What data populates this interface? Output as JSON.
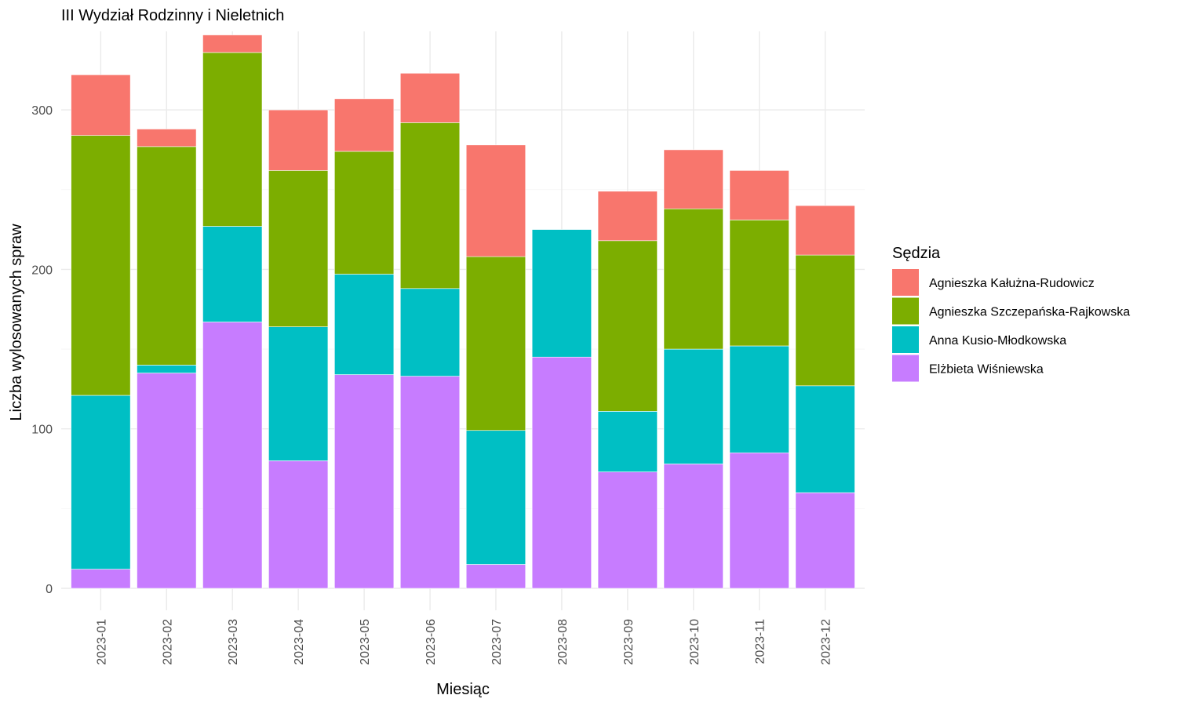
{
  "chart_data": {
    "type": "bar",
    "stacked": true,
    "title": "III Wydział Rodzinny i Nieletnich",
    "xlabel": "Miesiąc",
    "ylabel": "Liczba wylosowanych spraw",
    "ylim": [
      0,
      350
    ],
    "yticks": [
      0,
      100,
      200,
      300
    ],
    "grid": true,
    "legend_title": "Sędzia",
    "legend_position": "right",
    "categories": [
      "2023-01",
      "2023-02",
      "2023-03",
      "2023-04",
      "2023-05",
      "2023-06",
      "2023-07",
      "2023-08",
      "2023-09",
      "2023-10",
      "2023-11",
      "2023-12"
    ],
    "series": [
      {
        "name": "Elżbieta Wiśniewska",
        "color": "#C77CFF",
        "values": [
          12,
          135,
          167,
          80,
          134,
          133,
          15,
          145,
          73,
          78,
          85,
          60
        ]
      },
      {
        "name": "Anna Kusio-Młodkowska",
        "color": "#00BFC4",
        "values": [
          109,
          5,
          60,
          84,
          63,
          55,
          84,
          80,
          38,
          72,
          67,
          67
        ]
      },
      {
        "name": "Agnieszka Szczepańska-Rajkowska",
        "color": "#7CAE00",
        "values": [
          163,
          137,
          109,
          98,
          77,
          104,
          109,
          0,
          107,
          88,
          79,
          82
        ]
      },
      {
        "name": "Agnieszka Kałużna-Rudowicz",
        "color": "#F8766D",
        "values": [
          38,
          11,
          11,
          38,
          33,
          31,
          70,
          0,
          31,
          37,
          31,
          31
        ]
      }
    ],
    "legend_order": [
      "Agnieszka Kałużna-Rudowicz",
      "Agnieszka Szczepańska-Rajkowska",
      "Anna Kusio-Młodkowska",
      "Elżbieta Wiśniewska"
    ]
  }
}
